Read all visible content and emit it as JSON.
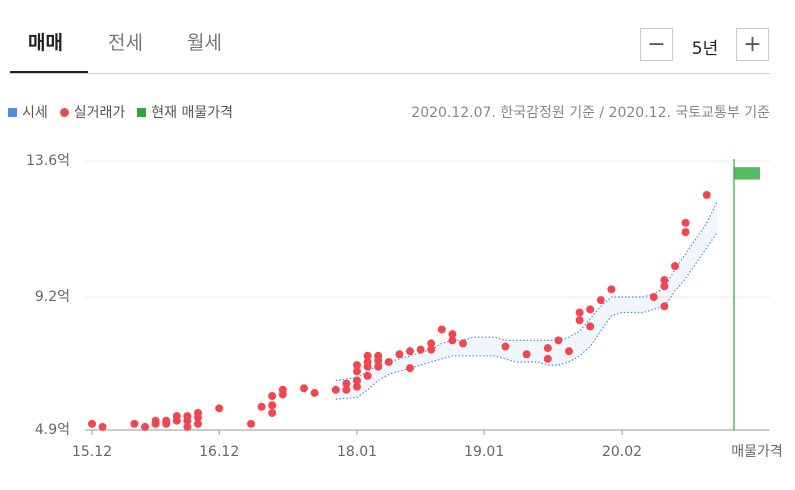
{
  "tabs": [
    "매매",
    "전세",
    "월세"
  ],
  "period": "5년",
  "source_note": "2020.12.07. 한국감정원 기준 / 2020.12. 국토교통부 기준",
  "chart_data": {
    "type": "scatter",
    "xlim": [
      "15.12",
      "20.12"
    ],
    "xticks": [
      "15.12",
      "16.12",
      "18.01",
      "19.01",
      "20.02"
    ],
    "ylim": [
      4.9,
      13.6
    ],
    "yticks": [
      {
        "value": 4.9,
        "label": "4.9억"
      },
      {
        "value": 9.2,
        "label": "9.2억"
      },
      {
        "value": 13.6,
        "label": "13.6억"
      }
    ],
    "grid": true,
    "series": [
      {
        "name": "시세",
        "color": "#4a90e2",
        "x": [
          "17.11",
          "18.01",
          "18.02",
          "18.03",
          "18.04",
          "18.05",
          "18.06",
          "18.07",
          "18.08",
          "18.09",
          "18.10",
          "18.11",
          "18.12",
          "19.01",
          "19.02",
          "19.03",
          "19.04",
          "19.05",
          "19.06",
          "19.07",
          "19.08",
          "19.09",
          "19.10",
          "19.11",
          "19.12",
          "20.01",
          "20.02",
          "20.03",
          "20.04",
          "20.05",
          "20.06",
          "20.07",
          "20.08",
          "20.09",
          "20.10",
          "20.11"
        ],
        "values": [
          6.5,
          6.6,
          6.8,
          7.0,
          7.1,
          7.2,
          7.3,
          7.4,
          7.5,
          7.7,
          7.8,
          7.8,
          7.9,
          7.9,
          7.9,
          7.8,
          7.8,
          7.8,
          7.8,
          7.8,
          7.8,
          7.9,
          8.1,
          8.5,
          8.9,
          9.2,
          9.2,
          9.2,
          9.2,
          9.3,
          9.5,
          10.1,
          10.6,
          11.1,
          11.6,
          12.3
        ],
        "low": [
          5.9,
          5.95,
          6.2,
          6.5,
          6.7,
          6.8,
          6.9,
          7.0,
          7.1,
          7.2,
          7.3,
          7.3,
          7.3,
          7.3,
          7.3,
          7.2,
          7.1,
          7.1,
          7.1,
          7.0,
          7.0,
          7.1,
          7.3,
          7.6,
          8.1,
          8.6,
          8.7,
          8.7,
          8.7,
          8.8,
          8.9,
          9.4,
          9.8,
          10.3,
          10.8,
          11.3
        ]
      },
      {
        "name": "실거래가",
        "color": "#f0474f",
        "x": [
          "15.12",
          "16.01",
          "16.04",
          "16.05",
          "16.06",
          "16.06",
          "16.07",
          "16.07",
          "16.08",
          "16.08",
          "16.09",
          "16.09",
          "16.09",
          "16.10",
          "16.10",
          "16.10",
          "16.12",
          "17.03",
          "17.04",
          "17.05",
          "17.05",
          "17.05",
          "17.06",
          "17.06",
          "17.08",
          "17.09",
          "17.11",
          "17.12",
          "17.12",
          "18.01",
          "18.01",
          "18.01",
          "18.01",
          "18.02",
          "18.02",
          "18.02",
          "18.02",
          "18.03",
          "18.03",
          "18.03",
          "18.04",
          "18.05",
          "18.06",
          "18.06",
          "18.07",
          "18.08",
          "18.08",
          "18.09",
          "18.10",
          "18.10",
          "18.11",
          "19.03",
          "19.05",
          "19.07",
          "19.07",
          "19.08",
          "19.09",
          "19.10",
          "19.10",
          "19.11",
          "19.11",
          "19.12",
          "20.01",
          "20.05",
          "20.06",
          "20.06",
          "20.06",
          "20.07",
          "20.08",
          "20.08",
          "20.10"
        ],
        "values": [
          5.1,
          5.0,
          5.1,
          5.0,
          5.2,
          5.1,
          5.2,
          5.1,
          5.35,
          5.2,
          5.35,
          5.2,
          5.0,
          5.45,
          5.3,
          5.1,
          5.6,
          5.1,
          5.65,
          5.7,
          5.45,
          6.0,
          6.2,
          6.05,
          6.25,
          6.1,
          6.2,
          6.4,
          6.2,
          7.0,
          6.8,
          6.5,
          6.3,
          7.3,
          7.1,
          6.95,
          6.65,
          7.3,
          7.15,
          6.95,
          7.1,
          7.35,
          7.45,
          6.9,
          7.5,
          7.7,
          7.5,
          8.15,
          8.0,
          7.8,
          7.7,
          7.6,
          7.35,
          7.55,
          7.2,
          7.8,
          7.45,
          8.7,
          8.45,
          8.8,
          8.25,
          9.1,
          9.45,
          9.2,
          9.75,
          9.55,
          8.9,
          10.2,
          11.6,
          11.3,
          12.5
        ]
      },
      {
        "name": "현재 매물가격",
        "color": "#2da83a",
        "label": "매물가격",
        "values": [
          13.0,
          13.4
        ]
      }
    ]
  }
}
